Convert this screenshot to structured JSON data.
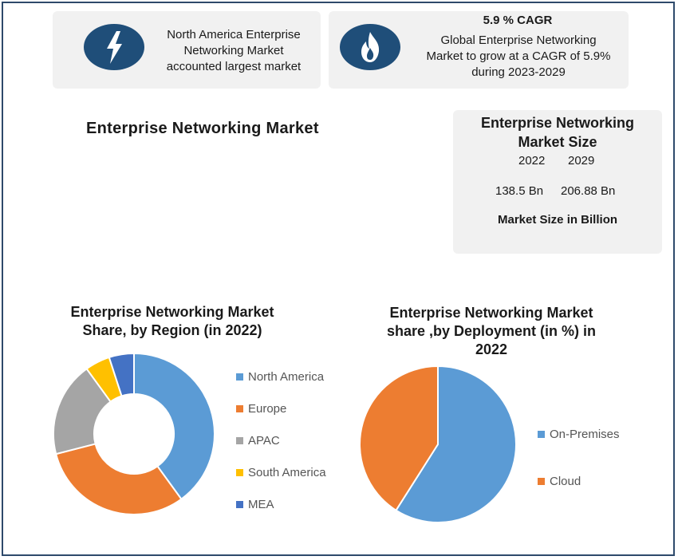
{
  "cards": {
    "region_highlight": {
      "icon": "lightning-bolt-icon",
      "text": [
        "North America Enterprise",
        "Networking Market",
        "accounted largest market"
      ]
    },
    "cagr": {
      "icon": "flame-icon",
      "title": "5.9 % CAGR",
      "text": [
        "Global Enterprise Networking",
        "Market to grow at a CAGR of 5.9%",
        "during 2023-2029"
      ]
    }
  },
  "main_title": "Enterprise Networking Market",
  "market_size": {
    "title": [
      "Enterprise Networking",
      "Market Size"
    ],
    "years": [
      "2022",
      "2029"
    ],
    "values": [
      "138.5 Bn",
      "206.88 Bn"
    ],
    "footer": "Market Size in Billion"
  },
  "colors": {
    "blue": "#5b9bd5",
    "orange": "#ed7d31",
    "gray": "#a5a5a5",
    "yellow": "#ffc000",
    "darkblue": "#4472c4",
    "icon_bg": "#1f4e79",
    "frame": "#2e4a6b"
  },
  "chart_data": [
    {
      "type": "pie",
      "style": "donut",
      "title": [
        "Enterprise Networking Market",
        "Share, by Region (in 2022)"
      ],
      "categories": [
        "North America",
        "Europe",
        "APAC",
        "South America",
        "MEA"
      ],
      "values": [
        40,
        31,
        19,
        5,
        5
      ],
      "colors": [
        "#5b9bd5",
        "#ed7d31",
        "#a5a5a5",
        "#ffc000",
        "#4472c4"
      ],
      "legend_position": "right"
    },
    {
      "type": "pie",
      "title": [
        "Enterprise Networking Market",
        "share ,by Deployment (in %) in",
        "2022"
      ],
      "categories": [
        "On-Premises",
        "Cloud"
      ],
      "values": [
        59,
        41
      ],
      "colors": [
        "#5b9bd5",
        "#ed7d31"
      ],
      "legend_position": "right"
    }
  ]
}
